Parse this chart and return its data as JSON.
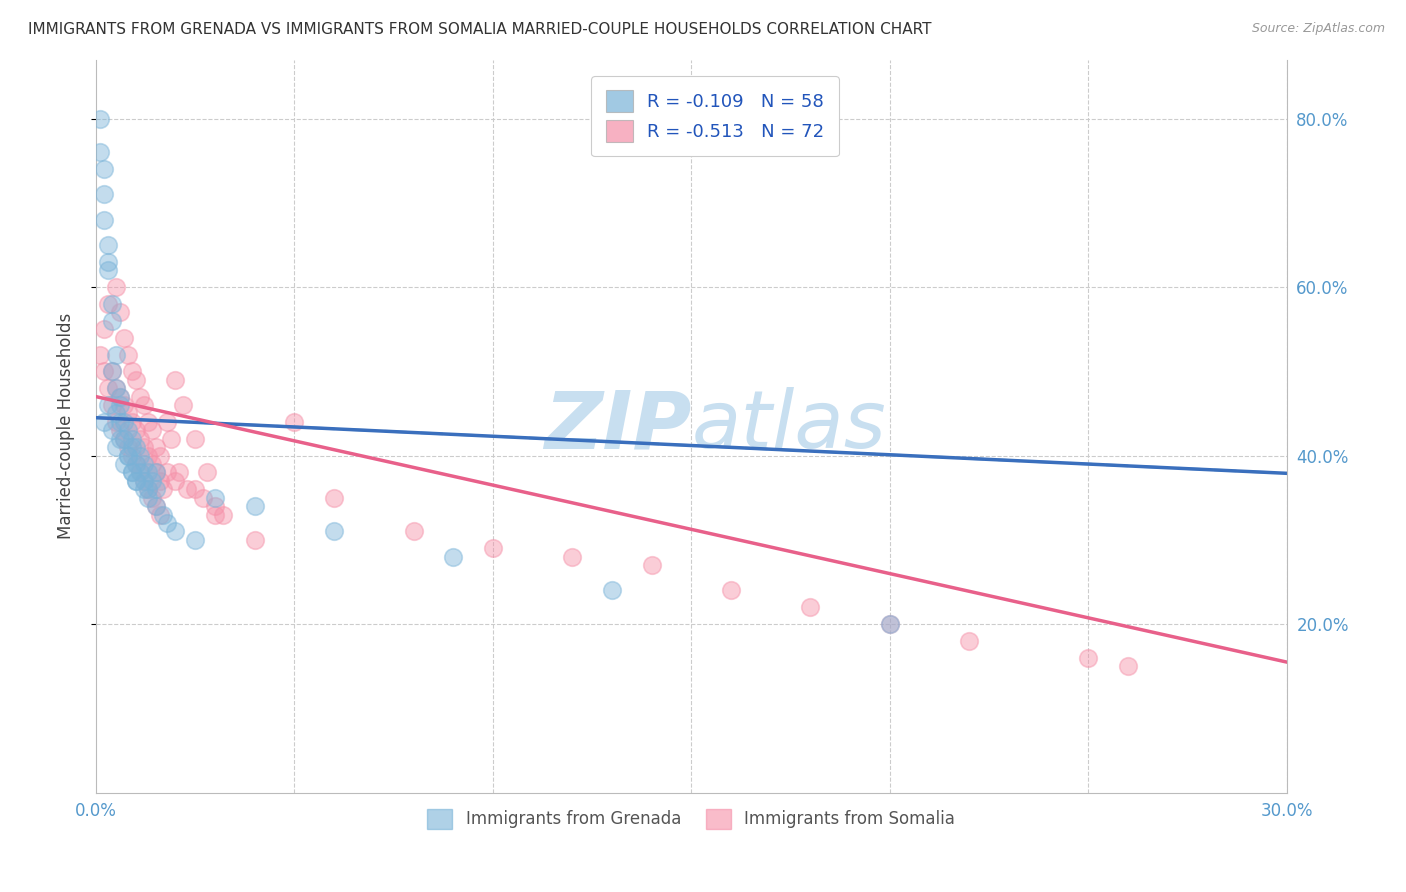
{
  "title": "IMMIGRANTS FROM GRENADA VS IMMIGRANTS FROM SOMALIA MARRIED-COUPLE HOUSEHOLDS CORRELATION CHART",
  "source": "Source: ZipAtlas.com",
  "ylabel": "Married-couple Households",
  "x_min": 0.0,
  "x_max": 0.3,
  "y_min": 0.0,
  "y_max": 0.87,
  "grenada_R": -0.109,
  "grenada_N": 58,
  "somalia_R": -0.513,
  "somalia_N": 72,
  "grenada_color": "#7ab3d8",
  "somalia_color": "#f590a8",
  "grenada_line_color": "#3a6fbd",
  "somalia_line_color": "#e8608a",
  "grenada_dash_color": "#a0c4e8",
  "background_color": "#ffffff",
  "grid_color": "#cccccc",
  "watermark_zip": "ZIP",
  "watermark_atlas": "atlas",
  "watermark_color": "#c8dff0",
  "legend_text_color": "#2255bb",
  "legend_label1": "R = -0.109   N = 58",
  "legend_label2": "R = -0.513   N = 72",
  "bottom_label1": "Immigrants from Grenada",
  "bottom_label2": "Immigrants from Somalia",
  "axis_tick_color": "#5599cc",
  "grenada_x": [
    0.001,
    0.001,
    0.002,
    0.002,
    0.002,
    0.003,
    0.003,
    0.003,
    0.004,
    0.004,
    0.004,
    0.005,
    0.005,
    0.005,
    0.006,
    0.006,
    0.006,
    0.007,
    0.007,
    0.008,
    0.008,
    0.009,
    0.009,
    0.009,
    0.01,
    0.01,
    0.01,
    0.011,
    0.011,
    0.012,
    0.012,
    0.013,
    0.013,
    0.014,
    0.015,
    0.015,
    0.002,
    0.003,
    0.004,
    0.005,
    0.006,
    0.007,
    0.008,
    0.009,
    0.01,
    0.012,
    0.013,
    0.015,
    0.017,
    0.018,
    0.02,
    0.025,
    0.03,
    0.04,
    0.06,
    0.09,
    0.13,
    0.2
  ],
  "grenada_y": [
    0.8,
    0.76,
    0.74,
    0.71,
    0.68,
    0.62,
    0.65,
    0.63,
    0.58,
    0.56,
    0.5,
    0.52,
    0.48,
    0.45,
    0.46,
    0.44,
    0.47,
    0.44,
    0.42,
    0.43,
    0.4,
    0.41,
    0.42,
    0.38,
    0.39,
    0.41,
    0.37,
    0.4,
    0.38,
    0.39,
    0.37,
    0.38,
    0.36,
    0.37,
    0.38,
    0.36,
    0.44,
    0.46,
    0.43,
    0.41,
    0.42,
    0.39,
    0.4,
    0.38,
    0.37,
    0.36,
    0.35,
    0.34,
    0.33,
    0.32,
    0.31,
    0.3,
    0.35,
    0.34,
    0.31,
    0.28,
    0.24,
    0.2
  ],
  "somalia_x": [
    0.001,
    0.002,
    0.002,
    0.003,
    0.003,
    0.004,
    0.004,
    0.005,
    0.005,
    0.006,
    0.006,
    0.007,
    0.007,
    0.008,
    0.008,
    0.009,
    0.009,
    0.01,
    0.01,
    0.011,
    0.011,
    0.012,
    0.012,
    0.013,
    0.013,
    0.014,
    0.014,
    0.015,
    0.015,
    0.016,
    0.016,
    0.017,
    0.018,
    0.019,
    0.02,
    0.021,
    0.022,
    0.023,
    0.025,
    0.027,
    0.028,
    0.03,
    0.032,
    0.005,
    0.006,
    0.007,
    0.008,
    0.009,
    0.01,
    0.011,
    0.012,
    0.013,
    0.014,
    0.015,
    0.016,
    0.018,
    0.02,
    0.025,
    0.03,
    0.04,
    0.05,
    0.06,
    0.08,
    0.1,
    0.12,
    0.14,
    0.16,
    0.18,
    0.2,
    0.22,
    0.25,
    0.26
  ],
  "somalia_y": [
    0.52,
    0.55,
    0.5,
    0.58,
    0.48,
    0.5,
    0.46,
    0.48,
    0.44,
    0.47,
    0.43,
    0.46,
    0.42,
    0.45,
    0.41,
    0.44,
    0.4,
    0.43,
    0.39,
    0.42,
    0.38,
    0.41,
    0.37,
    0.4,
    0.36,
    0.39,
    0.35,
    0.38,
    0.34,
    0.37,
    0.33,
    0.36,
    0.44,
    0.42,
    0.49,
    0.38,
    0.46,
    0.36,
    0.42,
    0.35,
    0.38,
    0.34,
    0.33,
    0.6,
    0.57,
    0.54,
    0.52,
    0.5,
    0.49,
    0.47,
    0.46,
    0.44,
    0.43,
    0.41,
    0.4,
    0.38,
    0.37,
    0.36,
    0.33,
    0.3,
    0.44,
    0.35,
    0.31,
    0.29,
    0.28,
    0.27,
    0.24,
    0.22,
    0.2,
    0.18,
    0.16,
    0.15
  ]
}
